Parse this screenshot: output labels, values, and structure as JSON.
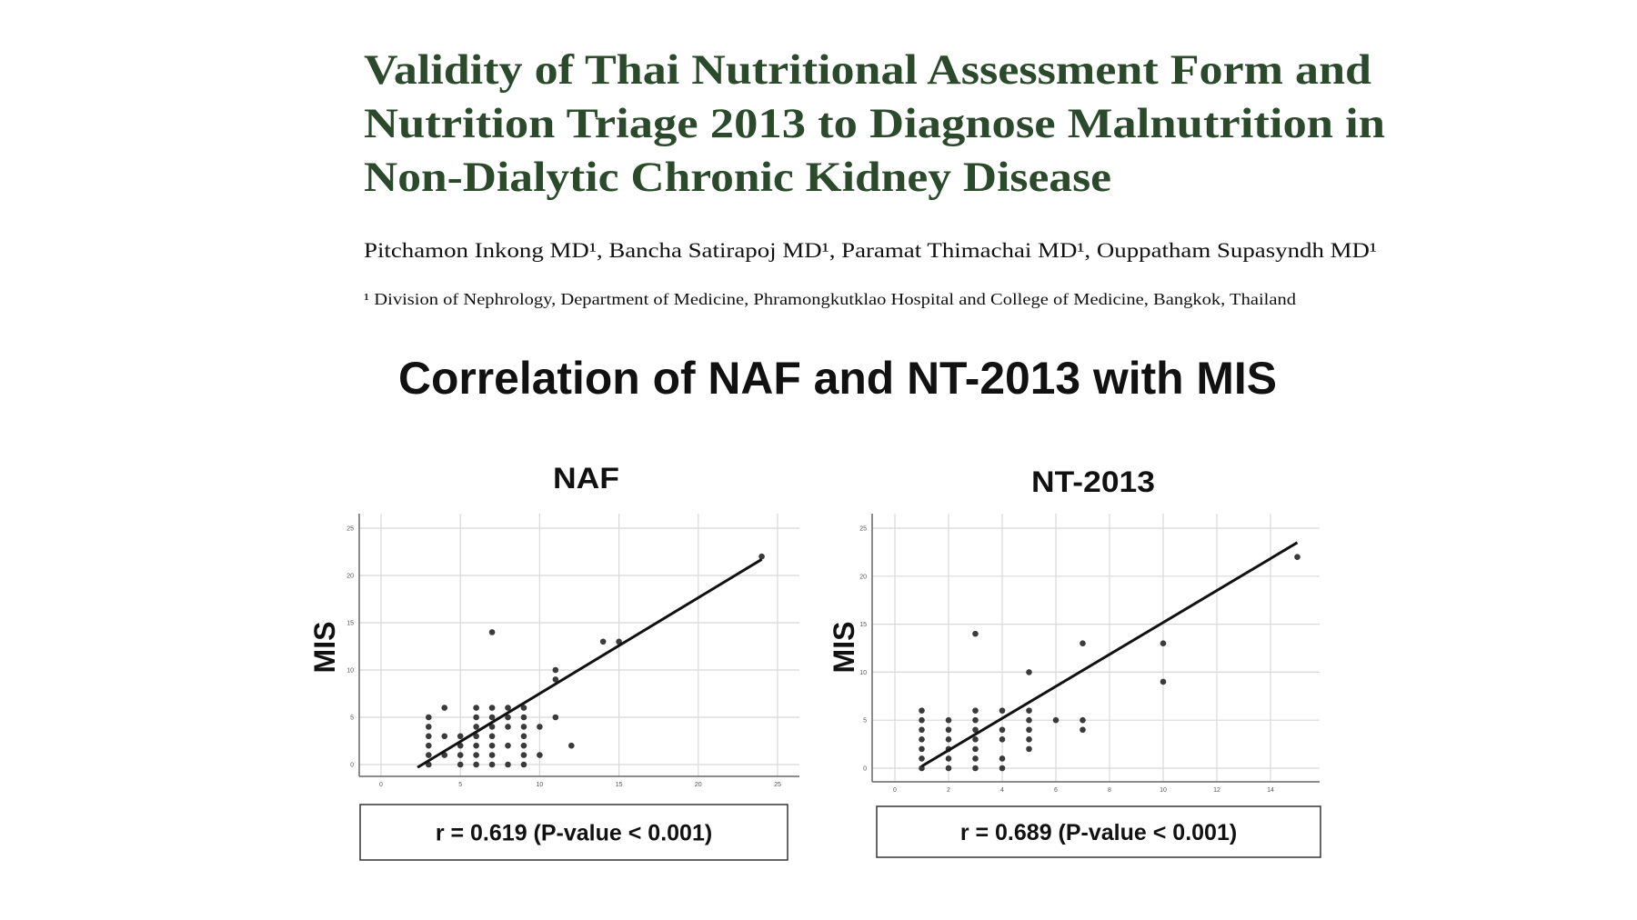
{
  "header": {
    "title_lines": [
      "Validity of Thai Nutritional Assessment Form and",
      "Nutrition Triage 2013 to Diagnose Malnutrition in",
      "Non-Dialytic Chronic Kidney Disease"
    ],
    "authors": "Pitchamon Inkong MD¹, Bancha Satirapoj MD¹, Paramat Thimachai MD¹, Ouppatham Supasyndh MD¹",
    "affiliation": "¹ Division of Nephrology, Department of Medicine, Phramongkutklao Hospital and College of Medicine, Bangkok, Thailand",
    "title_color": "#2b4a2b"
  },
  "figure": {
    "title": "Correlation of NAF and NT-2013 with MIS"
  },
  "chart_data": [
    {
      "type": "scatter",
      "title": "NAF",
      "xlabel": "",
      "ylabel": "MIS",
      "xlim": [
        0,
        25
      ],
      "ylim": [
        0,
        25
      ],
      "xticks": [
        0,
        5,
        10,
        15,
        20,
        25
      ],
      "yticks": [
        0,
        5,
        10,
        15,
        20,
        25
      ],
      "grid": true,
      "points": [
        [
          3,
          0
        ],
        [
          3,
          1
        ],
        [
          3,
          2
        ],
        [
          3,
          3
        ],
        [
          3,
          4
        ],
        [
          3,
          5
        ],
        [
          4,
          1
        ],
        [
          4,
          3
        ],
        [
          4,
          6
        ],
        [
          5,
          0
        ],
        [
          5,
          1
        ],
        [
          5,
          2
        ],
        [
          5,
          3
        ],
        [
          6,
          0
        ],
        [
          6,
          1
        ],
        [
          6,
          2
        ],
        [
          6,
          3
        ],
        [
          6,
          4
        ],
        [
          6,
          5
        ],
        [
          6,
          6
        ],
        [
          7,
          0
        ],
        [
          7,
          1
        ],
        [
          7,
          2
        ],
        [
          7,
          3
        ],
        [
          7,
          4
        ],
        [
          7,
          5
        ],
        [
          7,
          6
        ],
        [
          7,
          14
        ],
        [
          8,
          0
        ],
        [
          8,
          2
        ],
        [
          8,
          4
        ],
        [
          8,
          5
        ],
        [
          8,
          6
        ],
        [
          9,
          0
        ],
        [
          9,
          1
        ],
        [
          9,
          2
        ],
        [
          9,
          3
        ],
        [
          9,
          4
        ],
        [
          9,
          5
        ],
        [
          9,
          6
        ],
        [
          10,
          1
        ],
        [
          10,
          4
        ],
        [
          11,
          5
        ],
        [
          11,
          9
        ],
        [
          11,
          10
        ],
        [
          12,
          2
        ],
        [
          14,
          13
        ],
        [
          15,
          13
        ],
        [
          24,
          22
        ]
      ],
      "fit_line": {
        "x": [
          2.3,
          24
        ],
        "y": [
          -0.3,
          21.7
        ]
      },
      "annotation": "r = 0.619 (P-value < 0.001)"
    },
    {
      "type": "scatter",
      "title": "NT-2013",
      "xlabel": "",
      "ylabel": "MIS",
      "xlim": [
        0,
        15
      ],
      "ylim": [
        0,
        25
      ],
      "xticks": [
        0,
        2,
        4,
        6,
        8,
        10,
        12,
        14
      ],
      "yticks": [
        0,
        5,
        10,
        15,
        20,
        25
      ],
      "grid": true,
      "points": [
        [
          1,
          0
        ],
        [
          1,
          1
        ],
        [
          1,
          2
        ],
        [
          1,
          3
        ],
        [
          1,
          4
        ],
        [
          1,
          5
        ],
        [
          1,
          6
        ],
        [
          2,
          0
        ],
        [
          2,
          1
        ],
        [
          2,
          2
        ],
        [
          2,
          3
        ],
        [
          2,
          4
        ],
        [
          2,
          5
        ],
        [
          3,
          0
        ],
        [
          3,
          1
        ],
        [
          3,
          2
        ],
        [
          3,
          3
        ],
        [
          3,
          4
        ],
        [
          3,
          5
        ],
        [
          3,
          6
        ],
        [
          3,
          14
        ],
        [
          4,
          0
        ],
        [
          4,
          1
        ],
        [
          4,
          3
        ],
        [
          4,
          4
        ],
        [
          4,
          6
        ],
        [
          5,
          2
        ],
        [
          5,
          3
        ],
        [
          5,
          4
        ],
        [
          5,
          5
        ],
        [
          5,
          6
        ],
        [
          5,
          10
        ],
        [
          6,
          5
        ],
        [
          7,
          4
        ],
        [
          7,
          5
        ],
        [
          7,
          13
        ],
        [
          10,
          9
        ],
        [
          10,
          13
        ],
        [
          15,
          22
        ]
      ],
      "fit_line": {
        "x": [
          1,
          15
        ],
        "y": [
          0.2,
          23.5
        ]
      },
      "annotation": "r = 0.689 (P-value < 0.001)"
    }
  ]
}
